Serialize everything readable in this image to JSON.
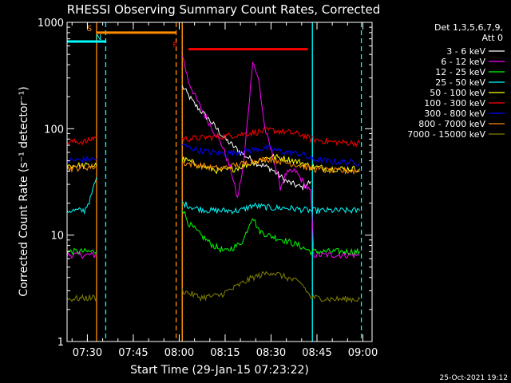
{
  "chart_data": {
    "type": "line",
    "title": "RHESSI Observing Summary Count Rates, Corrected",
    "xlabel": "Start Time (29-Jan-15 07:23:22)",
    "ylabel": "Corrected Count Rate (s⁻¹ detector⁻¹)",
    "yscale": "log",
    "ylim": [
      1,
      1000
    ],
    "xlim": [
      "07:23:22",
      "09:03:00"
    ],
    "x_ticks": [
      "07:30",
      "07:45",
      "08:00",
      "08:15",
      "08:30",
      "08:45",
      "09:00"
    ],
    "y_ticks": [
      "1",
      "10",
      "100",
      "1000"
    ],
    "grid": false,
    "legend_position": "right",
    "legend_header": [
      "Det 1,3,5,6,7,9,",
      "Att 0"
    ],
    "series": [
      {
        "name": "3 - 6 keV",
        "color": "#ffffff",
        "points": [
          [
            "08:01",
            250
          ],
          [
            "08:05",
            170
          ],
          [
            "08:10",
            120
          ],
          [
            "08:15",
            80
          ],
          [
            "08:20",
            60
          ],
          [
            "08:25",
            48
          ],
          [
            "08:30",
            42
          ],
          [
            "08:35",
            32
          ],
          [
            "08:40",
            28
          ],
          [
            "08:43",
            32
          ]
        ]
      },
      {
        "name": "6 - 12 keV",
        "color": "#ff00ff",
        "points": [
          [
            "07:23",
            6.5
          ],
          [
            "07:33",
            6.5
          ],
          [
            "08:01",
            500
          ],
          [
            "08:03",
            280
          ],
          [
            "08:06",
            180
          ],
          [
            "08:10",
            110
          ],
          [
            "08:14",
            70
          ],
          [
            "08:17",
            40
          ],
          [
            "08:19",
            22
          ],
          [
            "08:21",
            45
          ],
          [
            "08:23",
            200
          ],
          [
            "08:24",
            440
          ],
          [
            "08:26",
            280
          ],
          [
            "08:28",
            100
          ],
          [
            "08:31",
            50
          ],
          [
            "08:33",
            28
          ],
          [
            "08:35",
            38
          ],
          [
            "08:38",
            40
          ],
          [
            "08:41",
            30
          ],
          [
            "08:43",
            25
          ],
          [
            "08:44",
            6.5
          ],
          [
            "08:59",
            6.5
          ]
        ]
      },
      {
        "name": "12 - 25 keV",
        "color": "#00ff00",
        "points": [
          [
            "07:23",
            7
          ],
          [
            "07:33",
            7
          ],
          [
            "08:01",
            18
          ],
          [
            "08:03",
            13
          ],
          [
            "08:07",
            10
          ],
          [
            "08:11",
            8
          ],
          [
            "08:15",
            7
          ],
          [
            "08:19",
            8
          ],
          [
            "08:21",
            9
          ],
          [
            "08:23",
            13
          ],
          [
            "08:24",
            15
          ],
          [
            "08:26",
            11
          ],
          [
            "08:29",
            10
          ],
          [
            "08:34",
            9
          ],
          [
            "08:39",
            8
          ],
          [
            "08:43",
            7
          ],
          [
            "08:50",
            7
          ],
          [
            "08:59",
            7
          ]
        ]
      },
      {
        "name": "25 - 50 keV",
        "color": "#00ffff",
        "points": [
          [
            "07:23",
            17
          ],
          [
            "07:29",
            17
          ],
          [
            "07:31",
            22
          ],
          [
            "07:33",
            35
          ],
          [
            "08:01",
            20
          ],
          [
            "08:05",
            18
          ],
          [
            "08:10",
            17
          ],
          [
            "08:20",
            17
          ],
          [
            "08:24",
            19
          ],
          [
            "08:30",
            18
          ],
          [
            "08:35",
            18
          ],
          [
            "08:43",
            17
          ],
          [
            "08:50",
            17
          ],
          [
            "08:59",
            17
          ]
        ]
      },
      {
        "name": "50 - 100 keV",
        "color": "#ffff00",
        "points": [
          [
            "07:23",
            45
          ],
          [
            "07:33",
            45
          ],
          [
            "08:01",
            52
          ],
          [
            "08:07",
            45
          ],
          [
            "08:13",
            40
          ],
          [
            "08:18",
            42
          ],
          [
            "08:24",
            48
          ],
          [
            "08:30",
            55
          ],
          [
            "08:35",
            52
          ],
          [
            "08:40",
            48
          ],
          [
            "08:43",
            44
          ],
          [
            "08:50",
            42
          ],
          [
            "08:59",
            42
          ]
        ]
      },
      {
        "name": "100 - 300 keV",
        "color": "#ff0000",
        "points": [
          [
            "07:23",
            75
          ],
          [
            "07:30",
            76
          ],
          [
            "07:33",
            85
          ],
          [
            "08:01",
            80
          ],
          [
            "08:07",
            82
          ],
          [
            "08:15",
            85
          ],
          [
            "08:22",
            90
          ],
          [
            "08:30",
            97
          ],
          [
            "08:35",
            93
          ],
          [
            "08:40",
            88
          ],
          [
            "08:43",
            80
          ],
          [
            "08:50",
            75
          ],
          [
            "08:59",
            73
          ]
        ]
      },
      {
        "name": "300 - 800 keV",
        "color": "#0000ff",
        "points": [
          [
            "07:23",
            50
          ],
          [
            "07:33",
            52
          ],
          [
            "08:01",
            70
          ],
          [
            "08:07",
            62
          ],
          [
            "08:15",
            58
          ],
          [
            "08:22",
            62
          ],
          [
            "08:28",
            66
          ],
          [
            "08:35",
            60
          ],
          [
            "08:40",
            58
          ],
          [
            "08:43",
            52
          ],
          [
            "08:50",
            49
          ],
          [
            "08:59",
            48
          ]
        ]
      },
      {
        "name": "800 - 7000 keV",
        "color": "#ff8c00",
        "points": [
          [
            "07:23",
            42
          ],
          [
            "07:33",
            44
          ],
          [
            "08:01",
            48
          ],
          [
            "08:07",
            45
          ],
          [
            "08:13",
            42
          ],
          [
            "08:18",
            45
          ],
          [
            "08:25",
            50
          ],
          [
            "08:30",
            52
          ],
          [
            "08:35",
            48
          ],
          [
            "08:40",
            45
          ],
          [
            "08:43",
            42
          ],
          [
            "08:50",
            40
          ],
          [
            "08:59",
            40
          ]
        ]
      },
      {
        "name": "7000 - 15000 keV",
        "color": "#808000",
        "points": [
          [
            "07:23",
            2.5
          ],
          [
            "07:33",
            2.6
          ],
          [
            "08:01",
            3
          ],
          [
            "08:07",
            2.6
          ],
          [
            "08:13",
            2.7
          ],
          [
            "08:18",
            3.2
          ],
          [
            "08:24",
            4
          ],
          [
            "08:30",
            4.5
          ],
          [
            "08:35",
            4
          ],
          [
            "08:40",
            3.5
          ],
          [
            "08:43",
            2.6
          ],
          [
            "08:50",
            2.5
          ],
          [
            "08:59",
            2.5
          ]
        ]
      }
    ],
    "annotations": [
      {
        "label": "S",
        "color": "#ff8c00",
        "marker_time": "07:33:00",
        "bar": [
          "07:33:00",
          "07:59:00"
        ],
        "bar_level": 800,
        "line": "solid"
      },
      {
        "label": "N",
        "color": "#00ffff",
        "marker_time": "07:36:00",
        "bar": [
          "07:23:22",
          "07:36:00"
        ],
        "bar_level": 660,
        "line": "dashed"
      },
      {
        "label": "F",
        "color": "#ff0000",
        "marker_time": "08:01:00",
        "bar": [
          "08:03:00",
          "08:42:00"
        ],
        "bar_level": 560,
        "line": "none"
      }
    ],
    "vertical_lines": [
      {
        "time": "07:33:00",
        "color": "#ff8c00",
        "style": "solid"
      },
      {
        "time": "07:36:00",
        "color": "#00ffff",
        "style": "dashed"
      },
      {
        "time": "07:59:00",
        "color": "#ff8c00",
        "style": "dashed"
      },
      {
        "time": "08:01:00",
        "color": "#00ffff",
        "style": "solid"
      },
      {
        "time": "08:01:00",
        "color": "#ff8c00",
        "style": "solid"
      },
      {
        "time": "08:43:30",
        "color": "#00ffff",
        "style": "solid"
      },
      {
        "time": "08:59:30",
        "color": "#00ffff",
        "style": "dashed"
      }
    ],
    "footer_timestamp": "25-Oct-2021 19:12"
  }
}
